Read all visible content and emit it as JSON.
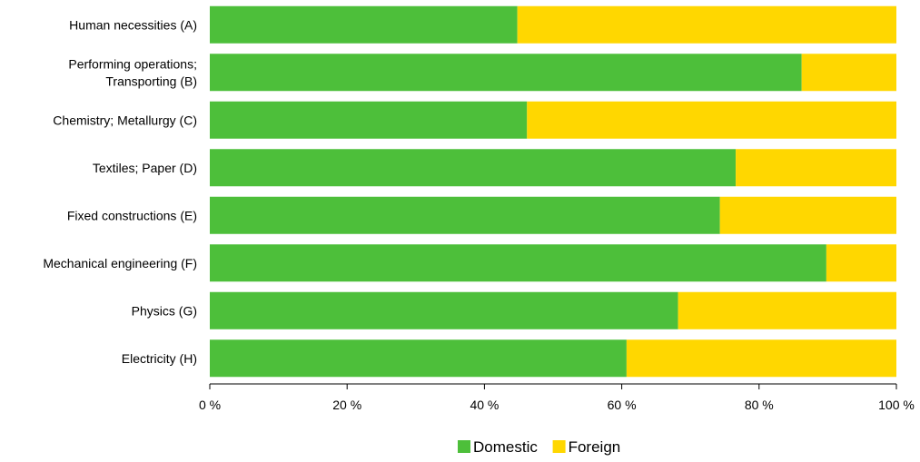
{
  "chart_data": {
    "type": "bar",
    "orientation": "horizontal",
    "stacked": true,
    "percent": true,
    "categories": [
      [
        "Human necessities (A)"
      ],
      [
        "Performing operations;",
        "Transporting (B)"
      ],
      [
        "Chemistry; Metallurgy  (C)"
      ],
      [
        "Textiles; Paper (D)"
      ],
      [
        "Fixed constructions (E)"
      ],
      [
        "Mechanical engineering (F)"
      ],
      [
        "Physics (G)"
      ],
      [
        "Electricity (H)"
      ]
    ],
    "series": [
      {
        "name": "Domestic",
        "color": "#4dbf3a",
        "values": [
          44.8,
          86.2,
          46.2,
          76.6,
          74.3,
          89.8,
          68.2,
          60.7
        ]
      },
      {
        "name": "Foreign",
        "color": "#ffd700",
        "values": [
          55.2,
          13.8,
          53.8,
          23.4,
          25.7,
          10.2,
          31.8,
          39.3
        ]
      }
    ],
    "xlim": [
      0,
      100
    ],
    "xticks": [
      "0 %",
      "20 %",
      "40 %",
      "60 %",
      "80 %",
      "100 %"
    ],
    "xtick_values": [
      0,
      20,
      40,
      60,
      80,
      100
    ],
    "grid": false,
    "legend_position": "bottom"
  }
}
